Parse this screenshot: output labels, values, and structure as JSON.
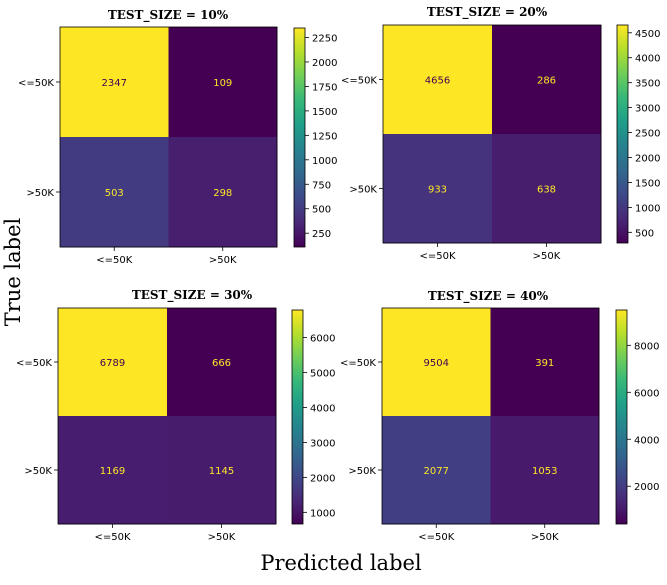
{
  "figure": {
    "xlabel": "Predicted label",
    "ylabel": "True label"
  },
  "colors": {
    "viridis": [
      "#440154",
      "#482878",
      "#3e4989",
      "#31688e",
      "#26828e",
      "#1f9e89",
      "#35b779",
      "#6ece58",
      "#b5de2b",
      "#fde725"
    ],
    "text_on_dark": "#fde725",
    "text_on_light": "#440154"
  },
  "chart_data": [
    {
      "type": "heatmap",
      "title": "TEST_SIZE = 10%",
      "x_categories": [
        "<=50K",
        ">50K"
      ],
      "y_categories": [
        "<=50K",
        ">50K"
      ],
      "values": [
        [
          2347,
          109
        ],
        [
          503,
          298
        ]
      ],
      "colorbar_range": [
        109,
        2347
      ],
      "colorbar_ticks": [
        250,
        500,
        750,
        1000,
        1250,
        1500,
        1750,
        2000,
        2250
      ]
    },
    {
      "type": "heatmap",
      "title": "TEST_SIZE = 20%",
      "x_categories": [
        "<=50K",
        ">50K"
      ],
      "y_categories": [
        "<=50K",
        ">50K"
      ],
      "values": [
        [
          4656,
          286
        ],
        [
          933,
          638
        ]
      ],
      "colorbar_range": [
        286,
        4656
      ],
      "colorbar_ticks": [
        500,
        1000,
        1500,
        2000,
        2500,
        3000,
        3500,
        4000,
        4500
      ]
    },
    {
      "type": "heatmap",
      "title": "TEST_SIZE = 30%",
      "x_categories": [
        "<=50K",
        ">50K"
      ],
      "y_categories": [
        "<=50K",
        ">50K"
      ],
      "values": [
        [
          6789,
          666
        ],
        [
          1169,
          1145
        ]
      ],
      "colorbar_range": [
        666,
        6789
      ],
      "colorbar_ticks": [
        1000,
        2000,
        3000,
        4000,
        5000,
        6000
      ]
    },
    {
      "type": "heatmap",
      "title": "TEST_SIZE = 40%",
      "x_categories": [
        "<=50K",
        ">50K"
      ],
      "y_categories": [
        "<=50K",
        ">50K"
      ],
      "values": [
        [
          9504,
          391
        ],
        [
          2077,
          1053
        ]
      ],
      "colorbar_range": [
        391,
        9504
      ],
      "colorbar_ticks": [
        2000,
        4000,
        6000,
        8000
      ]
    }
  ]
}
